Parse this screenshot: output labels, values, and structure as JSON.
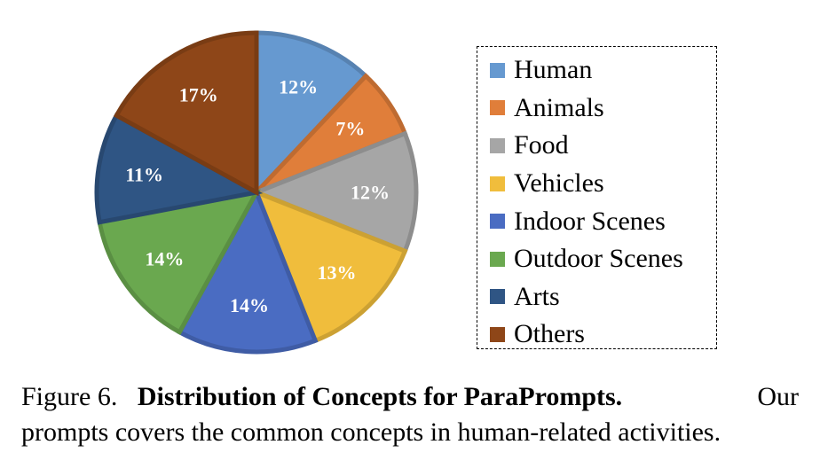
{
  "chart_data": {
    "type": "pie",
    "categories": [
      "Human",
      "Animals",
      "Food",
      "Vehicles",
      "Indoor Scenes",
      "Outdoor Scenes",
      "Arts",
      "Others"
    ],
    "values": [
      12,
      7,
      12,
      13,
      14,
      14,
      11,
      17
    ],
    "labels": [
      "12%",
      "7%",
      "12%",
      "13%",
      "14%",
      "14%",
      "11%",
      "17%"
    ],
    "colors": [
      "#6699d0",
      "#e07e3a",
      "#a6a6a6",
      "#f0bd3c",
      "#4a6cc2",
      "#6aa84f",
      "#2f5584",
      "#8e4618"
    ],
    "legend_position": "right"
  },
  "caption": {
    "figure_label": "Figure 6.",
    "bold_title": "Distribution of Concepts for ParaPrompts.",
    "line1_end": "Our",
    "line2": "prompts covers the common concepts in human-related activities."
  }
}
